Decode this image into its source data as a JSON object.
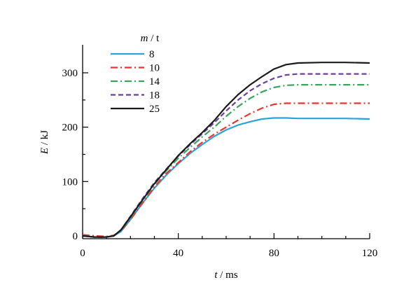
{
  "chart_data": {
    "type": "line",
    "xlabel_var": "t",
    "xlabel_unit": " / ms",
    "ylabel_var": "E",
    "ylabel_unit": " / kJ",
    "xlim": [
      0,
      120
    ],
    "ylim": [
      -5,
      350
    ],
    "xticks": [
      0,
      40,
      80,
      120
    ],
    "yticks": [
      0,
      100,
      200,
      300
    ],
    "xminor": [
      10,
      20,
      30,
      50,
      60,
      70,
      90,
      100,
      110
    ],
    "yminor": [
      50,
      150,
      250
    ],
    "grid": false,
    "legend": {
      "title_var": "m",
      "title_unit": " / t",
      "placement": "top-left"
    },
    "series": [
      {
        "name": "8",
        "color": "#29a3dc",
        "dash": "solid",
        "x": [
          0,
          5,
          10,
          13,
          16,
          20,
          25,
          30,
          35,
          40,
          45,
          50,
          55,
          60,
          65,
          70,
          75,
          80,
          85,
          90,
          100,
          110,
          120
        ],
        "y": [
          0,
          -2,
          -2,
          0,
          8,
          30,
          60,
          88,
          112,
          133,
          152,
          168,
          183,
          195,
          204,
          210,
          215,
          217,
          217,
          216,
          216,
          216,
          215
        ]
      },
      {
        "name": "10",
        "color": "#e8352d",
        "dash": "10 4 2 4",
        "x": [
          0,
          5,
          10,
          13,
          16,
          20,
          25,
          30,
          35,
          40,
          45,
          50,
          55,
          60,
          65,
          70,
          75,
          80,
          85,
          90,
          100,
          110,
          120
        ],
        "y": [
          2,
          0,
          -1,
          1,
          9,
          30,
          60,
          90,
          115,
          135,
          155,
          172,
          187,
          200,
          213,
          225,
          235,
          242,
          244,
          244,
          244,
          244,
          244
        ]
      },
      {
        "name": "14",
        "color": "#3aa55a",
        "dash": "10 4 2 4",
        "x": [
          0,
          5,
          10,
          13,
          16,
          20,
          25,
          30,
          35,
          40,
          45,
          50,
          55,
          60,
          65,
          70,
          75,
          80,
          85,
          90,
          100,
          110,
          120
        ],
        "y": [
          0,
          -2,
          -2,
          0,
          10,
          33,
          65,
          95,
          120,
          143,
          163,
          182,
          200,
          220,
          238,
          253,
          265,
          273,
          277,
          278,
          278,
          278,
          278
        ]
      },
      {
        "name": "18",
        "color": "#6a3fa0",
        "dash": "7 4",
        "x": [
          0,
          5,
          10,
          13,
          16,
          20,
          25,
          30,
          35,
          40,
          45,
          50,
          55,
          60,
          65,
          70,
          75,
          80,
          85,
          90,
          100,
          110,
          120
        ],
        "y": [
          0,
          -2,
          -2,
          0,
          11,
          36,
          68,
          98,
          123,
          147,
          168,
          188,
          208,
          230,
          250,
          267,
          280,
          290,
          296,
          298,
          298,
          298,
          298
        ]
      },
      {
        "name": "25",
        "color": "#1a1a1a",
        "dash": "solid",
        "x": [
          0,
          5,
          10,
          13,
          16,
          20,
          25,
          30,
          35,
          40,
          45,
          50,
          55,
          60,
          65,
          70,
          75,
          80,
          85,
          90,
          100,
          110,
          120
        ],
        "y": [
          0,
          -2,
          -2,
          0,
          11,
          35,
          66,
          96,
          122,
          148,
          170,
          190,
          212,
          238,
          260,
          278,
          293,
          307,
          315,
          318,
          319,
          319,
          318
        ]
      }
    ]
  }
}
